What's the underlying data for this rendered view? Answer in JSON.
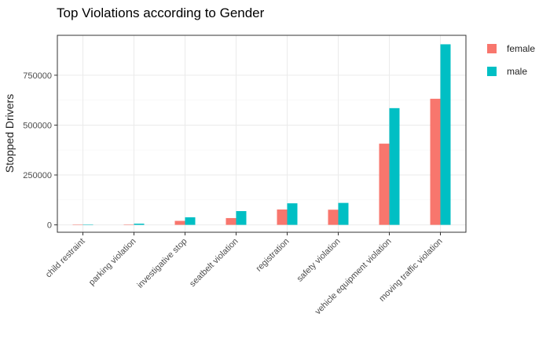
{
  "chart_data": {
    "type": "bar",
    "title": "Top Violations according to Gender",
    "xlabel": "",
    "ylabel": "Stopped Drivers",
    "categories": [
      "child restraint",
      "parking violation",
      "investigative stop",
      "seatbelt violation",
      "registration",
      "safety violation",
      "vehicle equipment violation",
      "moving traffic violation"
    ],
    "series": [
      {
        "name": "female",
        "color": "#F8766D",
        "values": [
          500,
          2000,
          20000,
          34000,
          77000,
          76000,
          407000,
          632000
        ]
      },
      {
        "name": "male",
        "color": "#00BFC4",
        "values": [
          1500,
          6000,
          38000,
          69000,
          108000,
          110000,
          585000,
          905000
        ]
      }
    ],
    "ylim": [
      -37000,
      950000
    ],
    "yticks": [
      0,
      250000,
      500000,
      750000
    ],
    "ytick_labels": [
      "0",
      "250000",
      "500000",
      "750000"
    ],
    "grid": true,
    "legend_position": "right"
  }
}
